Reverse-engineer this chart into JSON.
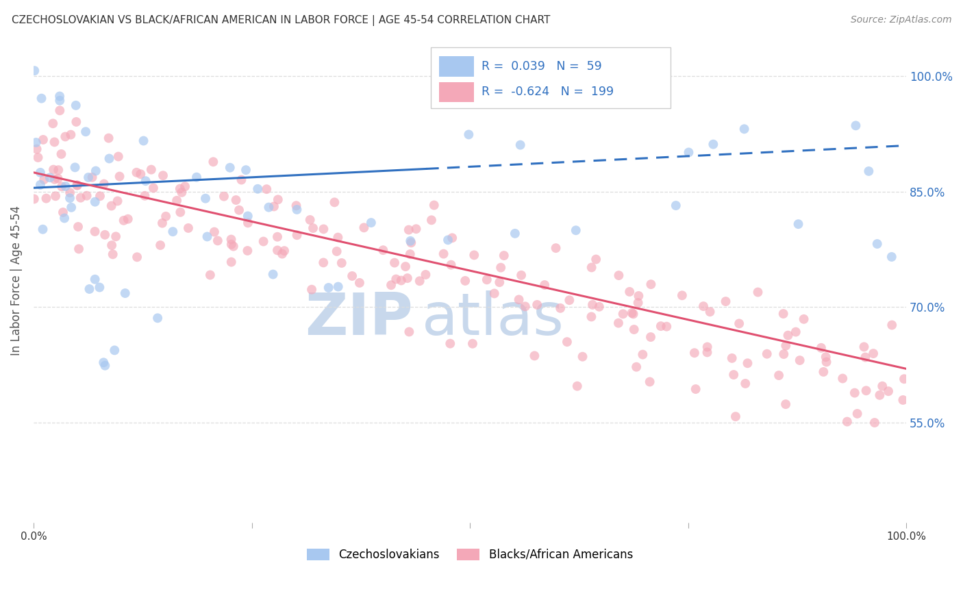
{
  "title": "CZECHOSLOVAKIAN VS BLACK/AFRICAN AMERICAN IN LABOR FORCE | AGE 45-54 CORRELATION CHART",
  "source": "Source: ZipAtlas.com",
  "ylabel": "In Labor Force | Age 45-54",
  "xlim": [
    0,
    1
  ],
  "ylim": [
    0.42,
    1.05
  ],
  "yticks": [
    0.55,
    0.7,
    0.85,
    1.0
  ],
  "ytick_labels": [
    "55.0%",
    "70.0%",
    "85.0%",
    "100.0%"
  ],
  "blue_R": 0.039,
  "blue_N": 59,
  "pink_R": -0.624,
  "pink_N": 199,
  "blue_color": "#A8C8F0",
  "pink_color": "#F4A8B8",
  "blue_line_color": "#3070C0",
  "pink_line_color": "#E05070",
  "watermark_zip": "ZIP",
  "watermark_atlas": "atlas",
  "watermark_color": "#C8D8EC",
  "background_color": "#FFFFFF",
  "grid_color": "#DDDDDD",
  "legend_label_color": "#3070C0",
  "axis_label_color": "#555555",
  "tick_color": "#3070C0",
  "bottom_legend_blue": "Czechoslovakians",
  "bottom_legend_pink": "Blacks/African Americans"
}
